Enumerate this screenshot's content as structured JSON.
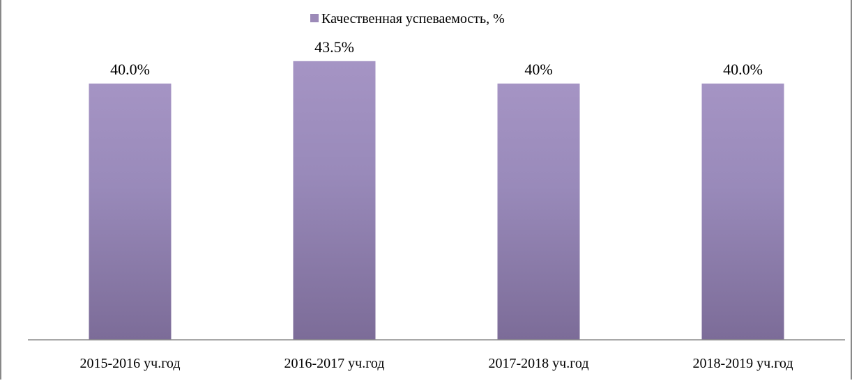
{
  "chart_data": {
    "type": "bar",
    "title": "",
    "xlabel": "",
    "ylabel": "",
    "ylim": [
      0,
      50
    ],
    "grid": false,
    "legend": {
      "position": "top",
      "entries": [
        "Качественная успеваемость, %"
      ]
    },
    "categories": [
      "2015-2016 уч.год",
      "2016-2017 уч.год",
      "2017-2018 уч.год",
      "2018-2019 уч.год"
    ],
    "series": [
      {
        "name": "Качественная успеваемость, %",
        "values": [
          40.0,
          43.5,
          40,
          40.0
        ],
        "data_labels": [
          "40.0%",
          "43.5%",
          "40%",
          "40.0%"
        ],
        "color": "#9c8ab8"
      }
    ]
  }
}
